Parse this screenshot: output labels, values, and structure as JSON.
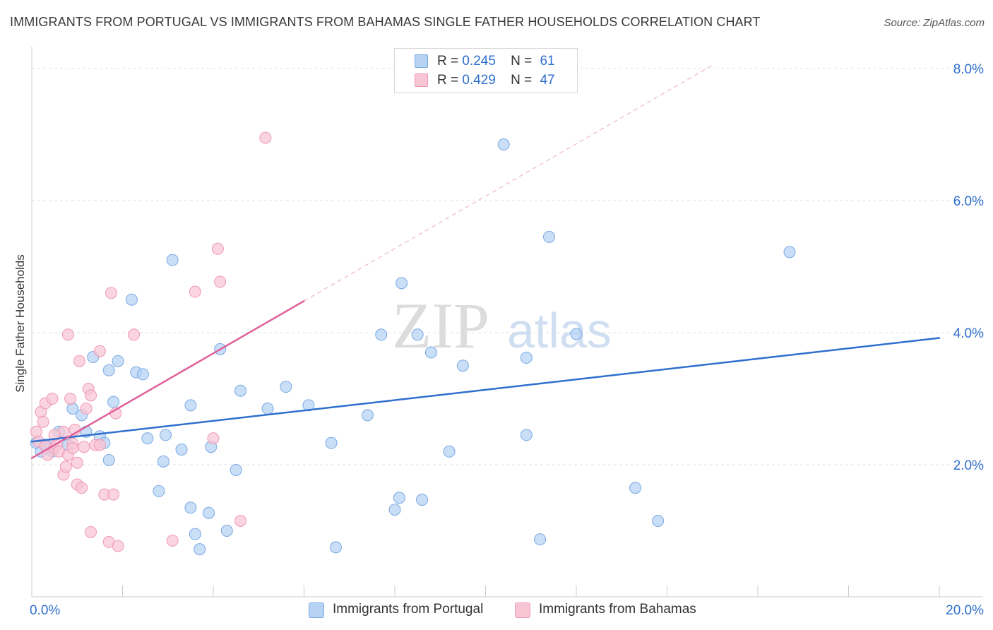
{
  "header": {
    "title": "IMMIGRANTS FROM PORTUGAL VS IMMIGRANTS FROM BAHAMAS SINGLE FATHER HOUSEHOLDS CORRELATION CHART",
    "source": "Source: ZipAtlas.com"
  },
  "legend": {
    "rows": [
      {
        "r_label": "R =",
        "r_value": "0.245",
        "n_label": "N =",
        "n_value": "61"
      },
      {
        "r_label": "R =",
        "r_value": "0.429",
        "n_label": "N =",
        "n_value": "47"
      }
    ]
  },
  "bottom_legend": [
    {
      "label": "Immigrants from Portugal"
    },
    {
      "label": "Immigrants from Bahamas"
    }
  ],
  "watermark": {
    "part1": "ZIP",
    "part2": "atlas"
  },
  "colors": {
    "portugal_fill": "#b7d3f4",
    "portugal_stroke": "#7aa9e2",
    "portugal_line": "#2f6fce",
    "bahamas_fill": "#f8c5d5",
    "bahamas_stroke": "#ee9ab5",
    "bahamas_line": "#e0609a",
    "value_text": "#2f6fce",
    "grid": "#e2e2e2"
  },
  "chart_data": {
    "type": "scatter",
    "title": "IMMIGRANTS FROM PORTUGAL VS IMMIGRANTS FROM BAHAMAS SINGLE FATHER HOUSEHOLDS CORRELATION CHART",
    "xlabel": "",
    "ylabel": "Single Father Households",
    "xlim": [
      0,
      20
    ],
    "ylim": [
      0,
      8
    ],
    "x_tick_labels": [
      {
        "value": 0,
        "label": "0.0%"
      },
      {
        "value": 20,
        "label": "20.0%"
      }
    ],
    "y_tick_labels": [
      {
        "value": 2,
        "label": "2.0%"
      },
      {
        "value": 4,
        "label": "4.0%"
      },
      {
        "value": 6,
        "label": "6.0%"
      },
      {
        "value": 8,
        "label": "8.0%"
      }
    ],
    "series": [
      {
        "name": "Immigrants from Portugal",
        "R": 0.245,
        "N": 61,
        "trend": {
          "x0": 0.0,
          "y0": 2.35,
          "x1": 20.0,
          "y1": 3.92,
          "dashed_extension": false
        },
        "points": [
          [
            0.1,
            2.33
          ],
          [
            0.2,
            2.2
          ],
          [
            0.3,
            2.3
          ],
          [
            0.35,
            2.27
          ],
          [
            0.4,
            2.3
          ],
          [
            0.45,
            2.2
          ],
          [
            0.6,
            2.5
          ],
          [
            0.8,
            2.3
          ],
          [
            0.9,
            2.85
          ],
          [
            1.1,
            2.75
          ],
          [
            1.2,
            2.5
          ],
          [
            1.35,
            3.63
          ],
          [
            1.5,
            2.43
          ],
          [
            1.6,
            2.33
          ],
          [
            1.7,
            2.07
          ],
          [
            1.8,
            2.95
          ],
          [
            1.9,
            3.57
          ],
          [
            1.7,
            3.43
          ],
          [
            2.2,
            4.5
          ],
          [
            2.3,
            3.4
          ],
          [
            2.45,
            3.37
          ],
          [
            2.55,
            2.4
          ],
          [
            2.8,
            1.6
          ],
          [
            2.9,
            2.05
          ],
          [
            2.95,
            2.45
          ],
          [
            3.1,
            5.1
          ],
          [
            3.3,
            2.23
          ],
          [
            3.5,
            1.35
          ],
          [
            3.5,
            2.9
          ],
          [
            3.6,
            0.95
          ],
          [
            3.7,
            0.72
          ],
          [
            3.9,
            1.27
          ],
          [
            3.95,
            2.27
          ],
          [
            4.15,
            3.75
          ],
          [
            4.3,
            1.0
          ],
          [
            4.5,
            1.92
          ],
          [
            4.6,
            3.12
          ],
          [
            5.2,
            2.85
          ],
          [
            5.6,
            3.18
          ],
          [
            6.1,
            2.9
          ],
          [
            6.6,
            2.33
          ],
          [
            6.7,
            0.75
          ],
          [
            7.4,
            2.75
          ],
          [
            7.7,
            3.97
          ],
          [
            8.0,
            1.32
          ],
          [
            8.1,
            1.5
          ],
          [
            8.15,
            4.75
          ],
          [
            8.5,
            3.97
          ],
          [
            8.6,
            1.47
          ],
          [
            8.8,
            3.7
          ],
          [
            9.2,
            2.2
          ],
          [
            9.5,
            3.5
          ],
          [
            10.4,
            6.85
          ],
          [
            10.9,
            2.45
          ],
          [
            10.9,
            3.62
          ],
          [
            11.2,
            0.87
          ],
          [
            11.4,
            5.45
          ],
          [
            12.0,
            3.98
          ],
          [
            13.3,
            1.65
          ],
          [
            13.8,
            1.15
          ],
          [
            16.7,
            5.22
          ]
        ]
      },
      {
        "name": "Immigrants from Bahamas",
        "R": 0.429,
        "N": 47,
        "trend": {
          "x0": 0.0,
          "y0": 2.1,
          "x1": 6.0,
          "y1": 4.48,
          "dashed_extension": true,
          "dash_x1": 15.0,
          "dash_y1": 8.05
        },
        "points": [
          [
            0.1,
            2.5
          ],
          [
            0.15,
            2.35
          ],
          [
            0.2,
            2.8
          ],
          [
            0.25,
            2.65
          ],
          [
            0.3,
            2.93
          ],
          [
            0.3,
            2.28
          ],
          [
            0.35,
            2.15
          ],
          [
            0.45,
            3.0
          ],
          [
            0.5,
            2.25
          ],
          [
            0.55,
            2.3
          ],
          [
            0.6,
            2.2
          ],
          [
            0.7,
            2.5
          ],
          [
            0.7,
            1.85
          ],
          [
            0.75,
            1.97
          ],
          [
            0.8,
            2.15
          ],
          [
            0.8,
            3.97
          ],
          [
            0.85,
            3.0
          ],
          [
            0.9,
            2.32
          ],
          [
            0.95,
            2.53
          ],
          [
            1.0,
            2.03
          ],
          [
            1.0,
            1.7
          ],
          [
            1.05,
            3.57
          ],
          [
            1.1,
            1.65
          ],
          [
            1.15,
            2.27
          ],
          [
            1.2,
            2.85
          ],
          [
            1.25,
            3.15
          ],
          [
            1.3,
            3.05
          ],
          [
            1.3,
            0.98
          ],
          [
            1.4,
            2.3
          ],
          [
            1.5,
            3.72
          ],
          [
            1.6,
            1.55
          ],
          [
            1.7,
            0.83
          ],
          [
            1.75,
            4.6
          ],
          [
            1.8,
            1.55
          ],
          [
            1.85,
            2.78
          ],
          [
            1.9,
            0.77
          ],
          [
            2.25,
            3.97
          ],
          [
            3.1,
            0.85
          ],
          [
            3.6,
            4.62
          ],
          [
            4.0,
            2.4
          ],
          [
            4.1,
            5.27
          ],
          [
            4.15,
            4.77
          ],
          [
            4.6,
            1.15
          ],
          [
            5.15,
            6.95
          ],
          [
            0.5,
            2.45
          ],
          [
            0.9,
            2.25
          ],
          [
            1.5,
            2.3
          ]
        ]
      }
    ]
  }
}
